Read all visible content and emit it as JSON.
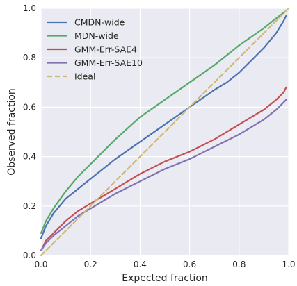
{
  "chart_data": {
    "type": "line",
    "xlabel": "Expected fraction",
    "ylabel": "Observed fraction",
    "xlim": [
      0,
      1
    ],
    "ylim": [
      0,
      1
    ],
    "xticks": [
      0.0,
      0.2,
      0.4,
      0.6,
      0.8,
      1.0
    ],
    "yticks": [
      0.0,
      0.2,
      0.4,
      0.6,
      0.8,
      1.0
    ],
    "xtick_labels": [
      "0.0",
      "0.2",
      "0.4",
      "0.6",
      "0.8",
      "1.0"
    ],
    "ytick_labels": [
      "0.0",
      "0.2",
      "0.4",
      "0.6",
      "0.8",
      "1.0"
    ],
    "grid": true,
    "background": "#eaeaf2",
    "legend_position": "top-left",
    "series": [
      {
        "name": "CMDN-wide",
        "color": "#4c72b0",
        "style": "solid",
        "x": [
          0.0,
          0.02,
          0.05,
          0.1,
          0.15,
          0.2,
          0.3,
          0.4,
          0.5,
          0.6,
          0.7,
          0.75,
          0.8,
          0.85,
          0.9,
          0.95,
          0.98,
          0.99
        ],
        "y": [
          0.07,
          0.12,
          0.17,
          0.23,
          0.27,
          0.31,
          0.39,
          0.46,
          0.53,
          0.6,
          0.67,
          0.7,
          0.74,
          0.79,
          0.84,
          0.9,
          0.95,
          0.97
        ]
      },
      {
        "name": "MDN-wide",
        "color": "#55a868",
        "style": "solid",
        "x": [
          0.0,
          0.02,
          0.05,
          0.1,
          0.15,
          0.2,
          0.3,
          0.4,
          0.5,
          0.6,
          0.7,
          0.8,
          0.9,
          0.95,
          0.99
        ],
        "y": [
          0.09,
          0.14,
          0.19,
          0.26,
          0.32,
          0.37,
          0.47,
          0.56,
          0.63,
          0.7,
          0.77,
          0.85,
          0.92,
          0.96,
          0.99
        ]
      },
      {
        "name": "GMM-Err-SAE4",
        "color": "#c44e52",
        "style": "solid",
        "x": [
          0.0,
          0.02,
          0.05,
          0.1,
          0.15,
          0.2,
          0.3,
          0.4,
          0.5,
          0.6,
          0.7,
          0.8,
          0.85,
          0.9,
          0.95,
          0.98,
          0.99
        ],
        "y": [
          0.02,
          0.06,
          0.09,
          0.14,
          0.18,
          0.21,
          0.27,
          0.33,
          0.38,
          0.42,
          0.47,
          0.53,
          0.56,
          0.59,
          0.63,
          0.66,
          0.68
        ]
      },
      {
        "name": "GMM-Err-SAE10",
        "color": "#8172b2",
        "style": "solid",
        "x": [
          0.0,
          0.02,
          0.05,
          0.1,
          0.15,
          0.2,
          0.3,
          0.4,
          0.5,
          0.6,
          0.7,
          0.8,
          0.85,
          0.9,
          0.95,
          0.98,
          0.99
        ],
        "y": [
          0.02,
          0.05,
          0.08,
          0.12,
          0.16,
          0.19,
          0.25,
          0.3,
          0.35,
          0.39,
          0.44,
          0.49,
          0.52,
          0.55,
          0.59,
          0.62,
          0.63
        ]
      },
      {
        "name": "Ideal",
        "color": "#ccb974",
        "style": "dashed",
        "x": [
          0.0,
          1.0
        ],
        "y": [
          0.0,
          1.0
        ]
      }
    ]
  }
}
